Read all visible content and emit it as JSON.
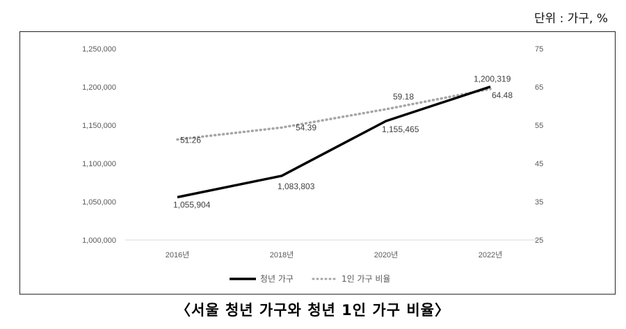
{
  "unit_label": "단위 : 가구, %",
  "caption": "〈서울 청년 가구와 청년 1인 가구 비율〉",
  "chart_data": {
    "type": "line",
    "title": "서울 청년 가구와 청년 1인 가구 비율",
    "categories": [
      "2016년",
      "2018년",
      "2020년",
      "2022년"
    ],
    "y_left": {
      "ylim": [
        1000000,
        1250000
      ],
      "ticks": [
        1000000,
        1050000,
        1100000,
        1150000,
        1200000,
        1250000
      ],
      "tick_labels": [
        "1,000,000",
        "1,050,000",
        "1,100,000",
        "1,150,000",
        "1,200,000",
        "1,250,000"
      ]
    },
    "y_right": {
      "ylim": [
        25,
        75
      ],
      "ticks": [
        25,
        35,
        45,
        55,
        65,
        75
      ],
      "tick_labels": [
        "25",
        "35",
        "45",
        "55",
        "65",
        "75"
      ]
    },
    "series": [
      {
        "name": "청년 가구",
        "axis": "left",
        "style": "solid",
        "color": "#000000",
        "values": [
          1055904,
          1083803,
          1155465,
          1200319
        ],
        "labels": [
          "1,055,904",
          "1,083,803",
          "1,155,465",
          "1,200,319"
        ]
      },
      {
        "name": "1인 가구 비율",
        "axis": "right",
        "style": "dotted",
        "color": "#a6a6a6",
        "values": [
          51.26,
          54.39,
          59.18,
          64.48
        ],
        "labels": [
          "51.26",
          "54.39",
          "59.18",
          "64.48"
        ]
      }
    ],
    "legend": "bottom",
    "grid": false
  }
}
